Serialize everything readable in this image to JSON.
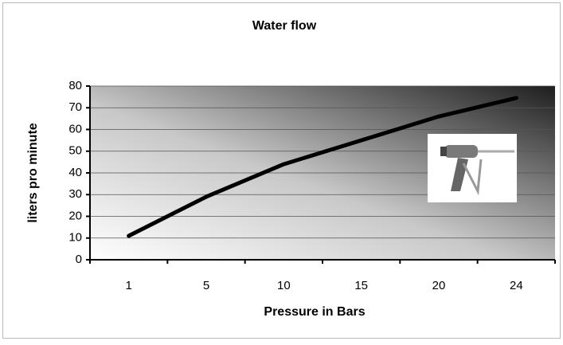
{
  "chart_data": {
    "type": "line",
    "title": "Water flow",
    "x_label": "Pressure in Bars",
    "y_label": "liters pro minute",
    "categories": [
      "1",
      "5",
      "10",
      "15",
      "20",
      "24"
    ],
    "values": [
      11,
      29,
      44,
      55,
      66,
      74.5
    ],
    "color": "#000000",
    "ylim": [
      0,
      80
    ],
    "yticks": [
      0,
      10,
      20,
      30,
      40,
      50,
      60,
      70,
      80
    ],
    "grid": true
  }
}
